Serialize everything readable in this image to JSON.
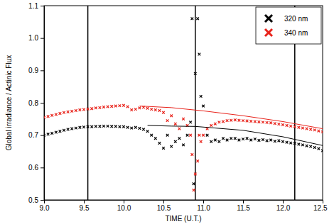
{
  "chart_data": {
    "type": "scatter",
    "x_label": "TIME (U.T.)",
    "y_label": "Global irradiance / Actinic Flux",
    "xlim": [
      9.0,
      12.5
    ],
    "ylim": [
      0.5,
      1.1
    ],
    "xticks": [
      {
        "value": 9,
        "label": "9.0"
      },
      9.5,
      {
        "value": 10,
        "label": "10.0"
      },
      10.5,
      {
        "value": 11,
        "label": "11.0"
      },
      11.5,
      {
        "value": 12,
        "label": "12.0"
      },
      12.5
    ],
    "yticks": [
      0.5,
      0.6,
      0.7,
      0.8,
      0.9,
      {
        "value": 1,
        "label": "1.0"
      },
      1.1
    ],
    "legend": "top-right",
    "vlines": [
      9.55,
      10.9,
      12.15
    ],
    "series": [
      {
        "name": "320 nm",
        "color": "#000000",
        "type": "scatter",
        "marker": "x",
        "x": [
          9.0,
          9.05,
          9.1,
          9.15,
          9.2,
          9.25,
          9.3,
          9.35,
          9.4,
          9.45,
          9.5,
          9.55,
          9.6,
          9.65,
          9.7,
          9.75,
          9.8,
          9.85,
          9.9,
          9.95,
          10.0,
          10.05,
          10.1,
          10.15,
          10.2,
          10.25,
          10.3,
          10.35,
          10.4,
          10.45,
          10.5,
          10.55,
          10.6,
          10.65,
          10.7,
          10.75,
          10.8,
          10.84,
          10.86,
          10.88,
          10.9,
          10.93,
          10.95,
          10.97,
          11.0,
          11.05,
          11.1,
          11.15,
          11.2,
          11.25,
          11.3,
          11.35,
          11.4,
          11.45,
          11.5,
          11.55,
          11.6,
          11.65,
          11.7,
          11.75,
          11.8,
          11.85,
          11.9,
          11.95,
          12.0,
          12.05,
          12.1,
          12.15,
          12.2,
          12.25,
          12.3,
          12.35,
          12.4,
          12.45,
          12.5
        ],
        "values": [
          0.7,
          0.703,
          0.706,
          0.709,
          0.712,
          0.715,
          0.718,
          0.72,
          0.722,
          0.724,
          0.725,
          0.726,
          0.726,
          0.727,
          0.727,
          0.728,
          0.728,
          0.727,
          0.727,
          0.726,
          0.726,
          0.724,
          0.722,
          0.724,
          0.721,
          0.718,
          0.712,
          0.7,
          0.69,
          0.675,
          0.66,
          0.7,
          0.665,
          0.68,
          0.69,
          0.67,
          0.7,
          0.74,
          1.06,
          0.55,
          0.89,
          1.06,
          0.95,
          0.82,
          0.79,
          0.7,
          0.68,
          0.685,
          0.68,
          0.69,
          0.685,
          0.69,
          0.69,
          0.685,
          0.688,
          0.69,
          0.685,
          0.688,
          0.684,
          0.686,
          0.683,
          0.685,
          0.681,
          0.683,
          0.68,
          0.678,
          0.676,
          0.675,
          0.672,
          0.67,
          0.667,
          0.665,
          0.662,
          0.658,
          0.652
        ]
      },
      {
        "name": "340 nm",
        "color": "#e8231b",
        "type": "scatter",
        "marker": "x",
        "x": [
          9.0,
          9.05,
          9.1,
          9.15,
          9.2,
          9.25,
          9.3,
          9.35,
          9.4,
          9.45,
          9.5,
          9.55,
          9.6,
          9.65,
          9.7,
          9.75,
          9.8,
          9.85,
          9.9,
          9.95,
          10.0,
          10.05,
          10.1,
          10.15,
          10.2,
          10.25,
          10.3,
          10.35,
          10.4,
          10.45,
          10.5,
          10.55,
          10.6,
          10.65,
          10.7,
          10.75,
          10.8,
          10.84,
          10.86,
          10.88,
          10.9,
          10.93,
          10.95,
          10.97,
          11.0,
          11.05,
          11.1,
          11.15,
          11.2,
          11.25,
          11.3,
          11.35,
          11.4,
          11.45,
          11.5,
          11.55,
          11.6,
          11.65,
          11.7,
          11.75,
          11.8,
          11.85,
          11.9,
          11.95,
          12.0,
          12.05,
          12.1,
          12.15,
          12.2,
          12.25,
          12.3,
          12.35,
          12.4,
          12.45,
          12.5
        ],
        "values": [
          0.755,
          0.758,
          0.761,
          0.764,
          0.767,
          0.77,
          0.772,
          0.774,
          0.776,
          0.778,
          0.779,
          0.781,
          0.782,
          0.784,
          0.785,
          0.787,
          0.788,
          0.789,
          0.79,
          0.791,
          0.792,
          0.788,
          0.778,
          0.78,
          0.784,
          0.786,
          0.783,
          0.78,
          0.778,
          0.776,
          0.77,
          0.745,
          0.76,
          0.735,
          0.72,
          0.75,
          0.73,
          0.7,
          0.64,
          0.53,
          0.58,
          0.62,
          0.7,
          0.68,
          0.7,
          0.72,
          0.73,
          0.735,
          0.74,
          0.742,
          0.745,
          0.746,
          0.747,
          0.746,
          0.745,
          0.744,
          0.743,
          0.742,
          0.741,
          0.74,
          0.739,
          0.738,
          0.736,
          0.734,
          0.732,
          0.73,
          0.728,
          0.726,
          0.724,
          0.722,
          0.72,
          0.718,
          0.716,
          0.713,
          0.71
        ]
      },
      {
        "color": "#000000",
        "type": "line",
        "x": [
          10.3,
          10.6,
          10.9,
          11.5,
          12.0,
          12.5
        ],
        "values": [
          0.73,
          0.728,
          0.727,
          0.715,
          0.695,
          0.668
        ]
      },
      {
        "color": "#e8231b",
        "type": "line",
        "x": [
          10.2,
          10.6,
          11.0,
          11.5,
          12.0,
          12.5
        ],
        "values": [
          0.79,
          0.785,
          0.775,
          0.76,
          0.742,
          0.72
        ]
      }
    ]
  }
}
